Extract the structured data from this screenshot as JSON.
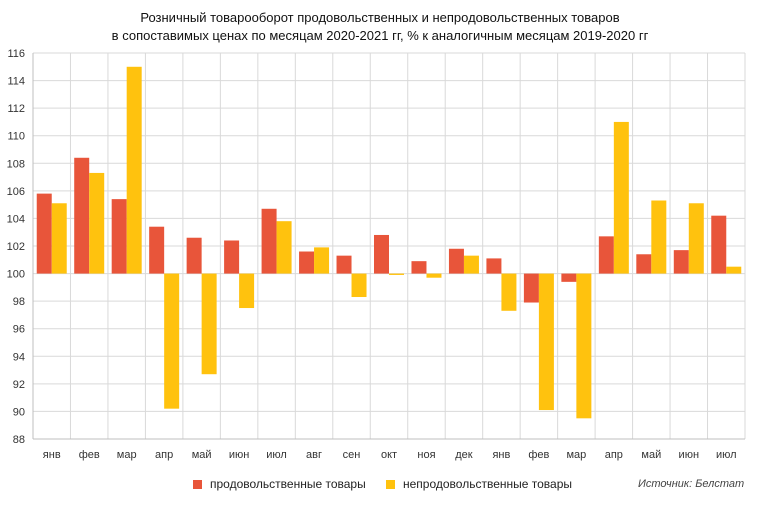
{
  "chart_data": {
    "type": "bar",
    "title": "Розничный товарооборот продовольственных и непродовольственных товаров",
    "subtitle": "в сопоставимых ценах по месяцам 2020-2021 гг, % к аналогичным месяцам 2019-2020 гг",
    "categories": [
      "янв",
      "фев",
      "мар",
      "апр",
      "май",
      "июн",
      "июл",
      "авг",
      "сен",
      "окт",
      "ноя",
      "дек",
      "янв",
      "фев",
      "мар",
      "апр",
      "май",
      "июн",
      "июл"
    ],
    "baseline": 100,
    "ylim": [
      88,
      116
    ],
    "yticks": [
      88,
      90,
      92,
      94,
      96,
      98,
      100,
      102,
      104,
      106,
      108,
      110,
      112,
      114,
      116
    ],
    "grid": true,
    "legend_position": "bottom",
    "series": [
      {
        "name": "продовольственные товары",
        "color": "#E8553A",
        "values": [
          105.8,
          108.4,
          105.4,
          103.4,
          102.6,
          102.4,
          104.7,
          101.6,
          101.3,
          102.8,
          100.9,
          101.8,
          101.1,
          97.9,
          99.4,
          102.7,
          101.4,
          101.7,
          104.2
        ]
      },
      {
        "name": "непродовольственные товары",
        "color": "#FFC20E",
        "values": [
          105.1,
          107.3,
          115.0,
          90.2,
          92.7,
          97.5,
          103.8,
          101.9,
          98.3,
          99.9,
          99.7,
          101.3,
          97.3,
          90.1,
          89.5,
          111.0,
          105.3,
          105.1,
          100.5
        ]
      }
    ],
    "source": "Источник: Белстат"
  }
}
